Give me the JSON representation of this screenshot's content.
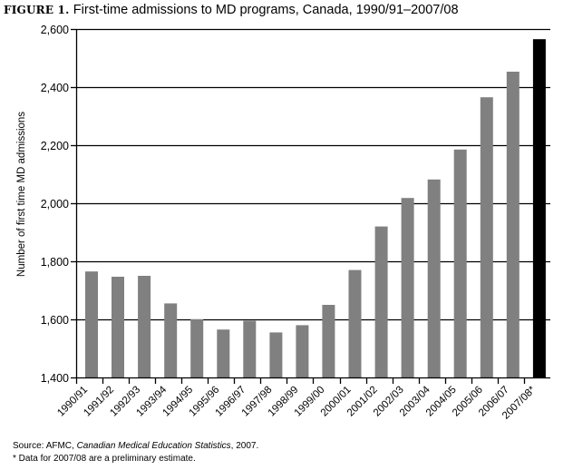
{
  "chart_data": {
    "type": "bar",
    "figure_label": "FIGURE 1.",
    "title": "First-time admissions to MD programs, Canada, 1990/91–2007/08",
    "xlabel": "",
    "ylabel": "Number of first time MD admissions",
    "ylim": [
      1400,
      2600
    ],
    "yticks": [
      1400,
      1600,
      1800,
      2000,
      2200,
      2400,
      2600
    ],
    "ytick_labels": [
      "1,400",
      "1,600",
      "1,800",
      "2,000",
      "2,200",
      "2,400",
      "2,600"
    ],
    "grid": true,
    "categories": [
      "1990/91",
      "1991/92",
      "1992/93",
      "1993/94",
      "1994/95",
      "1995/96",
      "1996/97",
      "1997/98",
      "1998/99",
      "1999/00",
      "2000/01",
      "2001/02",
      "2002/03",
      "2003/04",
      "2004/05",
      "2005/06",
      "2006/07",
      "2007/08*"
    ],
    "values": [
      1765,
      1747,
      1750,
      1655,
      1600,
      1565,
      1595,
      1555,
      1580,
      1650,
      1770,
      1920,
      2018,
      2082,
      2185,
      2365,
      2453,
      2565
    ],
    "colors": {
      "default": "#808080",
      "highlight": "#000000",
      "highlight_index": 17
    }
  },
  "notes": {
    "source_prefix": "Source: AFMC, ",
    "source_title": "Canadian Medical Education Statistics",
    "source_suffix": ", 2007.",
    "footnote": "* Data for 2007/08 are a preliminary estimate."
  }
}
